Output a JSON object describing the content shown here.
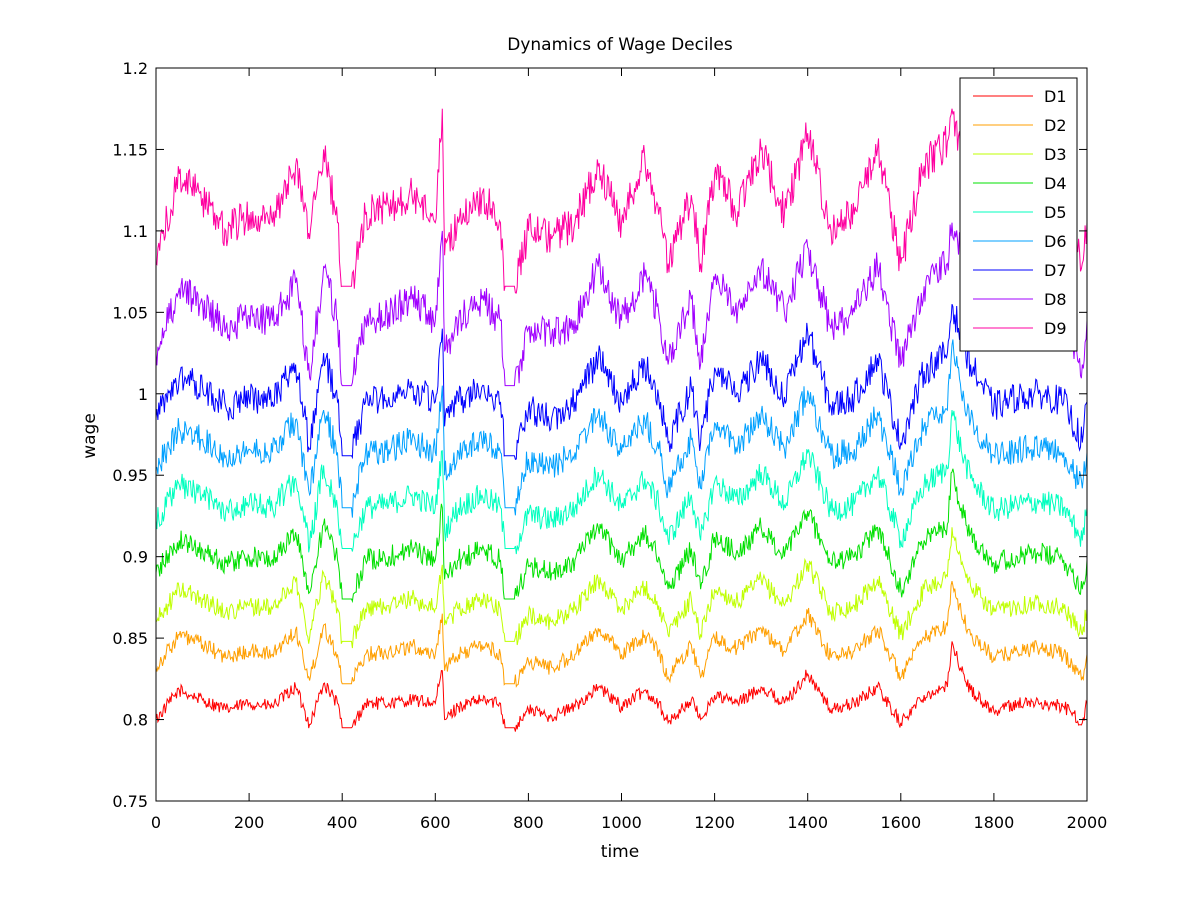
{
  "chart_data": {
    "type": "line",
    "title": "Dynamics of Wage Deciles",
    "xlabel": "time",
    "ylabel": "wage",
    "xlim": [
      0,
      2000
    ],
    "ylim": [
      0.75,
      1.2
    ],
    "xticks": [
      0,
      200,
      400,
      600,
      800,
      1000,
      1200,
      1400,
      1600,
      1800,
      2000
    ],
    "yticks": [
      0.75,
      0.8,
      0.85,
      0.9,
      0.95,
      1,
      1.05,
      1.1,
      1.15,
      1.2
    ],
    "ytick_labels": [
      "0.75",
      "0.8",
      "0.85",
      "0.9",
      "0.95",
      "1",
      "1.05",
      "1.1",
      "1.15",
      "1.2"
    ],
    "grid": false,
    "legend_position": "top-right",
    "x": [
      0,
      50,
      100,
      150,
      200,
      250,
      300,
      330,
      360,
      390,
      400,
      420,
      450,
      500,
      550,
      600,
      615,
      620,
      650,
      700,
      740,
      750,
      770,
      800,
      850,
      900,
      950,
      1000,
      1050,
      1080,
      1100,
      1150,
      1170,
      1200,
      1250,
      1300,
      1350,
      1400,
      1450,
      1500,
      1550,
      1600,
      1650,
      1700,
      1710,
      1730,
      1750,
      1800,
      1850,
      1900,
      1950,
      1990,
      2000
    ],
    "series": [
      {
        "name": "D1",
        "color": "#ff0000",
        "values": [
          0.8,
          0.818,
          0.812,
          0.806,
          0.81,
          0.808,
          0.82,
          0.797,
          0.822,
          0.81,
          0.795,
          0.795,
          0.81,
          0.81,
          0.812,
          0.81,
          0.83,
          0.8,
          0.808,
          0.812,
          0.81,
          0.795,
          0.795,
          0.806,
          0.802,
          0.808,
          0.82,
          0.808,
          0.818,
          0.81,
          0.798,
          0.812,
          0.8,
          0.815,
          0.81,
          0.82,
          0.81,
          0.828,
          0.806,
          0.81,
          0.82,
          0.798,
          0.815,
          0.82,
          0.848,
          0.83,
          0.818,
          0.805,
          0.81,
          0.81,
          0.808,
          0.798,
          0.81
        ]
      },
      {
        "name": "D2",
        "color": "#ff9f00",
        "values": [
          0.832,
          0.852,
          0.846,
          0.838,
          0.842,
          0.84,
          0.855,
          0.824,
          0.858,
          0.84,
          0.822,
          0.822,
          0.84,
          0.842,
          0.845,
          0.84,
          0.865,
          0.83,
          0.84,
          0.846,
          0.84,
          0.822,
          0.822,
          0.836,
          0.832,
          0.84,
          0.856,
          0.84,
          0.852,
          0.842,
          0.826,
          0.846,
          0.826,
          0.85,
          0.844,
          0.856,
          0.842,
          0.865,
          0.838,
          0.842,
          0.856,
          0.826,
          0.85,
          0.858,
          0.885,
          0.865,
          0.852,
          0.838,
          0.842,
          0.844,
          0.84,
          0.826,
          0.84
        ]
      },
      {
        "name": "D3",
        "color": "#bfff00",
        "values": [
          0.86,
          0.88,
          0.874,
          0.866,
          0.87,
          0.868,
          0.885,
          0.85,
          0.89,
          0.868,
          0.848,
          0.848,
          0.868,
          0.87,
          0.874,
          0.868,
          0.895,
          0.858,
          0.868,
          0.874,
          0.868,
          0.848,
          0.848,
          0.864,
          0.86,
          0.868,
          0.886,
          0.868,
          0.882,
          0.87,
          0.852,
          0.874,
          0.852,
          0.88,
          0.872,
          0.886,
          0.87,
          0.896,
          0.866,
          0.87,
          0.886,
          0.852,
          0.88,
          0.888,
          0.918,
          0.895,
          0.882,
          0.866,
          0.87,
          0.872,
          0.868,
          0.852,
          0.868
        ]
      },
      {
        "name": "D4",
        "color": "#00e000",
        "values": [
          0.89,
          0.91,
          0.904,
          0.896,
          0.9,
          0.898,
          0.915,
          0.878,
          0.92,
          0.898,
          0.874,
          0.874,
          0.898,
          0.9,
          0.905,
          0.898,
          0.93,
          0.886,
          0.898,
          0.904,
          0.898,
          0.874,
          0.874,
          0.894,
          0.89,
          0.898,
          0.918,
          0.898,
          0.914,
          0.9,
          0.88,
          0.905,
          0.88,
          0.912,
          0.902,
          0.918,
          0.9,
          0.928,
          0.896,
          0.9,
          0.918,
          0.88,
          0.91,
          0.92,
          0.952,
          0.93,
          0.914,
          0.896,
          0.9,
          0.902,
          0.898,
          0.88,
          0.898
        ]
      },
      {
        "name": "D5",
        "color": "#00ffbf",
        "values": [
          0.922,
          0.944,
          0.938,
          0.928,
          0.932,
          0.93,
          0.948,
          0.906,
          0.956,
          0.93,
          0.905,
          0.905,
          0.93,
          0.932,
          0.938,
          0.93,
          0.965,
          0.916,
          0.93,
          0.938,
          0.93,
          0.905,
          0.905,
          0.926,
          0.922,
          0.93,
          0.952,
          0.93,
          0.948,
          0.932,
          0.91,
          0.938,
          0.91,
          0.946,
          0.934,
          0.952,
          0.932,
          0.964,
          0.928,
          0.932,
          0.952,
          0.91,
          0.944,
          0.954,
          0.99,
          0.965,
          0.948,
          0.928,
          0.932,
          0.934,
          0.93,
          0.91,
          0.93
        ]
      },
      {
        "name": "D6",
        "color": "#00a0ff",
        "values": [
          0.955,
          0.978,
          0.972,
          0.962,
          0.966,
          0.964,
          0.984,
          0.938,
          0.99,
          0.964,
          0.93,
          0.93,
          0.964,
          0.966,
          0.972,
          0.964,
          1.005,
          0.95,
          0.964,
          0.972,
          0.964,
          0.93,
          0.93,
          0.96,
          0.955,
          0.964,
          0.988,
          0.964,
          0.984,
          0.966,
          0.942,
          0.972,
          0.942,
          0.982,
          0.968,
          0.988,
          0.966,
          1.002,
          0.962,
          0.966,
          0.988,
          0.942,
          0.98,
          0.99,
          1.03,
          1.0,
          0.984,
          0.962,
          0.966,
          0.968,
          0.964,
          0.942,
          0.964
        ]
      },
      {
        "name": "D7",
        "color": "#0000ff",
        "values": [
          0.985,
          1.01,
          1.004,
          0.992,
          0.997,
          0.995,
          1.018,
          0.966,
          1.025,
          0.995,
          0.962,
          0.962,
          0.995,
          0.998,
          1.004,
          0.995,
          1.04,
          0.98,
          0.995,
          1.004,
          0.995,
          0.962,
          0.962,
          0.99,
          0.985,
          0.995,
          1.022,
          0.995,
          1.018,
          0.998,
          0.97,
          1.004,
          0.97,
          1.016,
          1.0,
          1.022,
          0.998,
          1.038,
          0.992,
          0.998,
          1.022,
          0.97,
          1.014,
          1.025,
          1.055,
          1.035,
          1.018,
          0.992,
          0.998,
          1.0,
          0.995,
          0.97,
          0.995
        ]
      },
      {
        "name": "D8",
        "color": "#a000ff",
        "values": [
          1.025,
          1.065,
          1.055,
          1.04,
          1.048,
          1.045,
          1.068,
          1.01,
          1.078,
          1.045,
          1.005,
          1.005,
          1.045,
          1.05,
          1.058,
          1.045,
          1.1,
          1.026,
          1.045,
          1.058,
          1.045,
          1.005,
          1.005,
          1.04,
          1.035,
          1.045,
          1.078,
          1.045,
          1.072,
          1.05,
          1.018,
          1.058,
          1.018,
          1.07,
          1.052,
          1.078,
          1.05,
          1.09,
          1.04,
          1.05,
          1.078,
          1.018,
          1.066,
          1.08,
          1.105,
          1.085,
          1.072,
          1.04,
          1.05,
          1.052,
          1.045,
          1.018,
          1.045
        ]
      },
      {
        "name": "D9",
        "color": "#ff00a0",
        "values": [
          1.08,
          1.135,
          1.12,
          1.1,
          1.11,
          1.105,
          1.14,
          1.095,
          1.15,
          1.105,
          1.066,
          1.066,
          1.11,
          1.115,
          1.122,
          1.105,
          1.175,
          1.085,
          1.105,
          1.122,
          1.105,
          1.066,
          1.066,
          1.1,
          1.095,
          1.105,
          1.14,
          1.105,
          1.145,
          1.11,
          1.08,
          1.122,
          1.08,
          1.135,
          1.112,
          1.15,
          1.11,
          1.16,
          1.1,
          1.11,
          1.15,
          1.08,
          1.14,
          1.155,
          1.175,
          1.15,
          1.14,
          1.1,
          1.11,
          1.112,
          1.105,
          1.08,
          1.105
        ]
      }
    ]
  }
}
